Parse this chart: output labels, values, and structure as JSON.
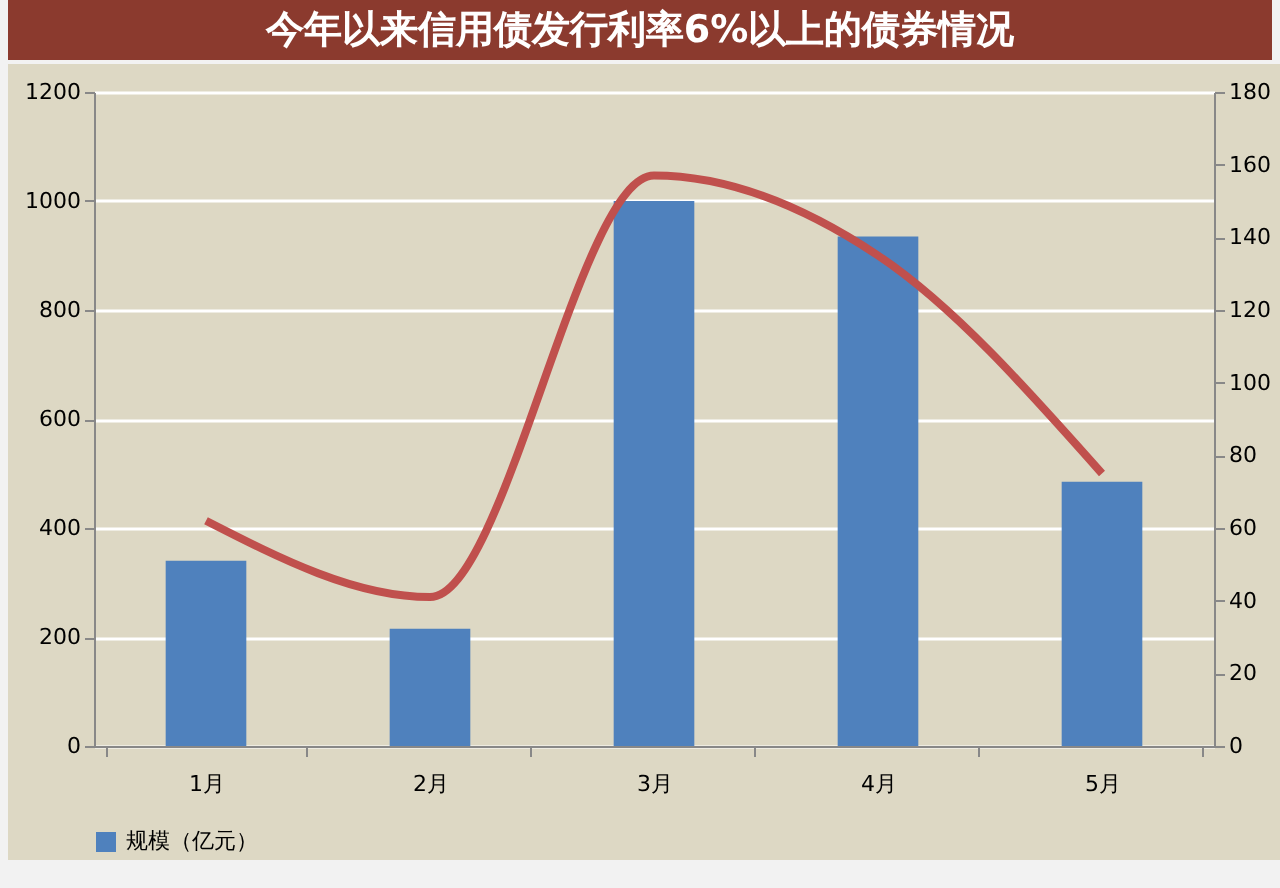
{
  "chart_data": {
    "type": "bar",
    "title": "今年以来信用债发行利率6%以上的债券情况",
    "categories": [
      "1月",
      "2月",
      "3月",
      "4月",
      "5月"
    ],
    "series": [
      {
        "name": "规模（亿元）",
        "color": "#4f81bd",
        "values": [
          340,
          215,
          1000,
          935,
          485
        ]
      },
      {
        "type": "line",
        "axis": "y2",
        "color": "#c0504d",
        "values": [
          62,
          41,
          157,
          135,
          75
        ]
      }
    ],
    "ylim": [
      0,
      1200
    ],
    "yticks": [
      0,
      200,
      400,
      600,
      800,
      1000,
      1200
    ],
    "y2lim": [
      0,
      180
    ],
    "y2ticks": [
      0,
      20,
      40,
      60,
      80,
      100,
      120,
      140,
      160,
      180
    ],
    "grid": "y",
    "legend": "bottom",
    "marker": "none",
    "line_style": "solid"
  }
}
